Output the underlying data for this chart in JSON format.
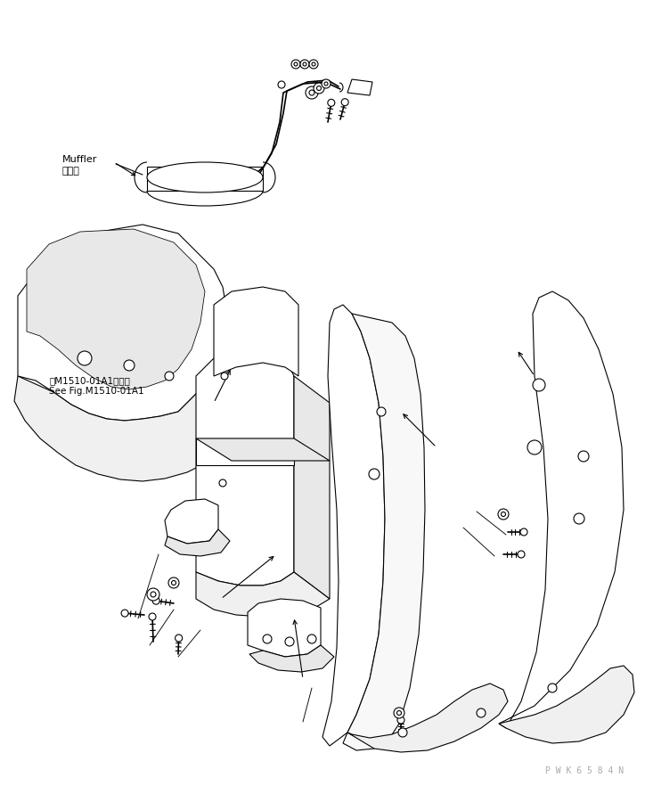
{
  "bg_color": "#ffffff",
  "line_color": "#000000",
  "line_width": 0.8,
  "text_ref_japanese": "第M1510-01A1図参照",
  "text_ref_english": "See Fig.M1510-01A1",
  "text_muffler_japanese": "マフラ",
  "text_muffler_english": "Muffler",
  "watermark": "P W K 6 5 8 4 N",
  "fig_width": 7.24,
  "fig_height": 8.82,
  "dpi": 100
}
